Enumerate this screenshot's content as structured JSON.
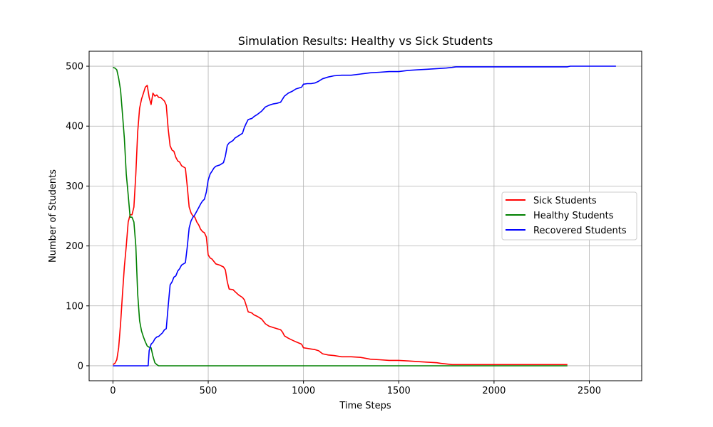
{
  "chart_data": {
    "type": "line",
    "title": "Simulation Results: Healthy vs Sick Students",
    "xlabel": "Time Steps",
    "ylabel": "Number of Students",
    "xlim": [
      -125,
      2775
    ],
    "ylim": [
      -25,
      525
    ],
    "x_ticks": [
      0,
      500,
      1000,
      1500,
      2000,
      2500
    ],
    "y_ticks": [
      0,
      100,
      200,
      300,
      400,
      500
    ],
    "grid": true,
    "legend_position": "center-right",
    "series": [
      {
        "name": "Sick Students",
        "color": "#ff0000",
        "points": [
          [
            0,
            2
          ],
          [
            10,
            4
          ],
          [
            20,
            10
          ],
          [
            30,
            30
          ],
          [
            40,
            70
          ],
          [
            50,
            120
          ],
          [
            60,
            165
          ],
          [
            70,
            200
          ],
          [
            80,
            240
          ],
          [
            90,
            252
          ],
          [
            100,
            252
          ],
          [
            110,
            265
          ],
          [
            120,
            320
          ],
          [
            130,
            390
          ],
          [
            140,
            430
          ],
          [
            150,
            445
          ],
          [
            160,
            455
          ],
          [
            170,
            465
          ],
          [
            180,
            468
          ],
          [
            190,
            448
          ],
          [
            200,
            436
          ],
          [
            210,
            455
          ],
          [
            220,
            450
          ],
          [
            230,
            452
          ],
          [
            240,
            448
          ],
          [
            250,
            448
          ],
          [
            260,
            445
          ],
          [
            270,
            442
          ],
          [
            280,
            435
          ],
          [
            290,
            395
          ],
          [
            300,
            367
          ],
          [
            310,
            360
          ],
          [
            320,
            358
          ],
          [
            330,
            348
          ],
          [
            340,
            342
          ],
          [
            350,
            340
          ],
          [
            360,
            334
          ],
          [
            370,
            332
          ],
          [
            380,
            330
          ],
          [
            390,
            300
          ],
          [
            400,
            265
          ],
          [
            410,
            255
          ],
          [
            420,
            250
          ],
          [
            430,
            248
          ],
          [
            440,
            240
          ],
          [
            450,
            235
          ],
          [
            460,
            228
          ],
          [
            470,
            224
          ],
          [
            480,
            222
          ],
          [
            490,
            215
          ],
          [
            500,
            185
          ],
          [
            510,
            180
          ],
          [
            520,
            178
          ],
          [
            540,
            170
          ],
          [
            560,
            168
          ],
          [
            580,
            165
          ],
          [
            590,
            160
          ],
          [
            600,
            140
          ],
          [
            610,
            128
          ],
          [
            630,
            127
          ],
          [
            640,
            124
          ],
          [
            660,
            118
          ],
          [
            680,
            114
          ],
          [
            690,
            110
          ],
          [
            700,
            100
          ],
          [
            710,
            90
          ],
          [
            730,
            88
          ],
          [
            740,
            85
          ],
          [
            760,
            82
          ],
          [
            780,
            78
          ],
          [
            800,
            70
          ],
          [
            820,
            66
          ],
          [
            840,
            64
          ],
          [
            860,
            62
          ],
          [
            880,
            60
          ],
          [
            890,
            56
          ],
          [
            900,
            50
          ],
          [
            920,
            46
          ],
          [
            940,
            43
          ],
          [
            960,
            40
          ],
          [
            990,
            36
          ],
          [
            1000,
            30
          ],
          [
            1020,
            29
          ],
          [
            1040,
            28
          ],
          [
            1060,
            27
          ],
          [
            1080,
            25
          ],
          [
            1100,
            20
          ],
          [
            1130,
            18
          ],
          [
            1160,
            17
          ],
          [
            1200,
            15
          ],
          [
            1250,
            15
          ],
          [
            1300,
            14
          ],
          [
            1350,
            11
          ],
          [
            1400,
            10
          ],
          [
            1450,
            9
          ],
          [
            1500,
            9
          ],
          [
            1550,
            8
          ],
          [
            1600,
            7
          ],
          [
            1650,
            6
          ],
          [
            1700,
            5
          ],
          [
            1720,
            4
          ],
          [
            1750,
            3
          ],
          [
            1780,
            2
          ],
          [
            1800,
            2
          ],
          [
            1900,
            2
          ],
          [
            2000,
            2
          ],
          [
            2100,
            2
          ],
          [
            2200,
            2
          ],
          [
            2300,
            2
          ],
          [
            2385,
            2
          ]
        ]
      },
      {
        "name": "Healthy Students",
        "color": "#008000",
        "points": [
          [
            0,
            498
          ],
          [
            10,
            497
          ],
          [
            20,
            494
          ],
          [
            30,
            480
          ],
          [
            40,
            460
          ],
          [
            50,
            420
          ],
          [
            60,
            380
          ],
          [
            70,
            320
          ],
          [
            80,
            285
          ],
          [
            90,
            248
          ],
          [
            100,
            248
          ],
          [
            110,
            240
          ],
          [
            120,
            200
          ],
          [
            130,
            120
          ],
          [
            140,
            75
          ],
          [
            150,
            58
          ],
          [
            160,
            48
          ],
          [
            170,
            40
          ],
          [
            180,
            33
          ],
          [
            190,
            31
          ],
          [
            200,
            30
          ],
          [
            210,
            16
          ],
          [
            220,
            5
          ],
          [
            230,
            2
          ],
          [
            240,
            0
          ],
          [
            300,
            0
          ],
          [
            500,
            0
          ],
          [
            1000,
            0
          ],
          [
            1500,
            0
          ],
          [
            2000,
            0
          ],
          [
            2385,
            0
          ]
        ]
      },
      {
        "name": "Recovered Students",
        "color": "#0000ff",
        "points": [
          [
            0,
            0
          ],
          [
            100,
            0
          ],
          [
            150,
            0
          ],
          [
            185,
            0
          ],
          [
            190,
            25
          ],
          [
            200,
            36
          ],
          [
            210,
            39
          ],
          [
            220,
            45
          ],
          [
            230,
            48
          ],
          [
            240,
            49
          ],
          [
            250,
            52
          ],
          [
            260,
            55
          ],
          [
            270,
            60
          ],
          [
            280,
            62
          ],
          [
            290,
            100
          ],
          [
            300,
            135
          ],
          [
            310,
            140
          ],
          [
            320,
            148
          ],
          [
            330,
            150
          ],
          [
            340,
            158
          ],
          [
            350,
            162
          ],
          [
            360,
            168
          ],
          [
            370,
            170
          ],
          [
            380,
            172
          ],
          [
            390,
            198
          ],
          [
            400,
            230
          ],
          [
            410,
            242
          ],
          [
            420,
            248
          ],
          [
            430,
            252
          ],
          [
            440,
            258
          ],
          [
            450,
            264
          ],
          [
            460,
            270
          ],
          [
            470,
            275
          ],
          [
            480,
            278
          ],
          [
            490,
            290
          ],
          [
            500,
            310
          ],
          [
            510,
            320
          ],
          [
            520,
            325
          ],
          [
            530,
            330
          ],
          [
            540,
            333
          ],
          [
            560,
            335
          ],
          [
            580,
            339
          ],
          [
            590,
            350
          ],
          [
            600,
            368
          ],
          [
            610,
            372
          ],
          [
            630,
            376
          ],
          [
            640,
            380
          ],
          [
            660,
            384
          ],
          [
            680,
            388
          ],
          [
            690,
            398
          ],
          [
            700,
            405
          ],
          [
            710,
            411
          ],
          [
            730,
            413
          ],
          [
            740,
            416
          ],
          [
            760,
            420
          ],
          [
            780,
            425
          ],
          [
            800,
            432
          ],
          [
            820,
            435
          ],
          [
            840,
            437
          ],
          [
            860,
            438
          ],
          [
            880,
            440
          ],
          [
            900,
            450
          ],
          [
            920,
            455
          ],
          [
            940,
            458
          ],
          [
            960,
            462
          ],
          [
            990,
            465
          ],
          [
            1000,
            470
          ],
          [
            1020,
            471
          ],
          [
            1040,
            471
          ],
          [
            1060,
            472
          ],
          [
            1080,
            475
          ],
          [
            1100,
            479
          ],
          [
            1130,
            482
          ],
          [
            1160,
            484
          ],
          [
            1200,
            485
          ],
          [
            1250,
            485
          ],
          [
            1300,
            487
          ],
          [
            1350,
            489
          ],
          [
            1400,
            490
          ],
          [
            1450,
            491
          ],
          [
            1500,
            491
          ],
          [
            1550,
            493
          ],
          [
            1600,
            494
          ],
          [
            1650,
            495
          ],
          [
            1700,
            496
          ],
          [
            1750,
            497
          ],
          [
            1780,
            498
          ],
          [
            1800,
            499
          ],
          [
            2000,
            499
          ],
          [
            2200,
            499
          ],
          [
            2385,
            499
          ],
          [
            2400,
            500
          ],
          [
            2500,
            500
          ],
          [
            2640,
            500
          ]
        ]
      }
    ]
  }
}
